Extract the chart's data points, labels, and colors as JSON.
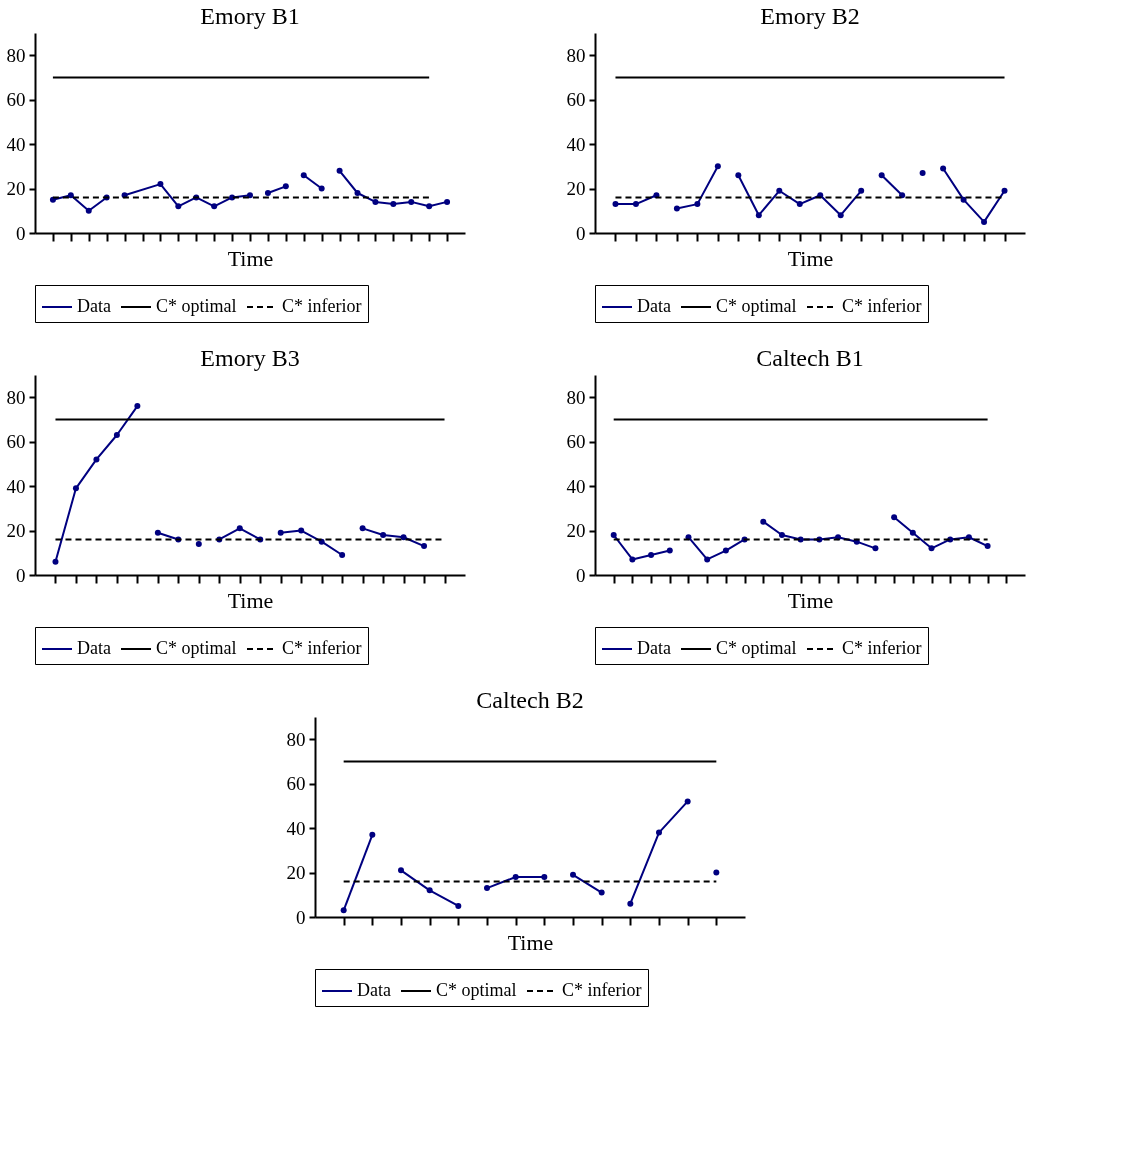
{
  "chart_data": [
    {
      "type": "line",
      "title": "Emory B1",
      "xlabel": "Time",
      "categories": [
        null,
        null,
        null,
        null,
        null,
        null,
        null,
        null,
        null,
        null,
        null,
        null,
        null,
        null,
        null,
        null,
        null,
        null,
        null,
        null,
        null,
        null,
        null
      ],
      "ylim": [
        0,
        90
      ],
      "yticks": [
        0,
        20,
        40,
        60,
        80
      ],
      "tick_labels": "y",
      "legend": "bottom",
      "marker": "circle",
      "series": [
        {
          "name": "Data",
          "color": "#000080",
          "values": [
            15,
            17,
            10,
            16,
            null,
            null,
            null,
            null,
            null,
            null,
            null,
            null,
            null,
            null,
            null,
            null,
            null,
            null,
            null,
            null,
            null,
            null,
            null
          ]
        },
        {
          "color": "#000080",
          "values": [
            null,
            null,
            null,
            null,
            17,
            null,
            22,
            12,
            16,
            12,
            16,
            17,
            null,
            null,
            null,
            null,
            null,
            null,
            null,
            null,
            null,
            null,
            null
          ]
        },
        {
          "color": "#000080",
          "values": [
            null,
            null,
            null,
            null,
            null,
            null,
            null,
            null,
            null,
            null,
            null,
            null,
            18,
            21,
            null,
            null,
            null,
            null,
            null,
            null,
            null,
            null,
            null
          ]
        },
        {
          "color": "#000080",
          "values": [
            null,
            null,
            null,
            null,
            null,
            null,
            null,
            null,
            null,
            null,
            null,
            null,
            null,
            null,
            26,
            20,
            null,
            null,
            null,
            null,
            null,
            null,
            null
          ]
        },
        {
          "color": "#000080",
          "values": [
            null,
            null,
            null,
            null,
            null,
            null,
            null,
            null,
            null,
            null,
            null,
            null,
            null,
            null,
            null,
            null,
            28,
            18,
            14,
            13,
            14,
            12,
            14
          ]
        },
        {
          "name": "C* optimal",
          "color": "#000000",
          "marker": "none",
          "line_style": "solid",
          "values": [
            70,
            70,
            70,
            70,
            70,
            70,
            70,
            70,
            70,
            70,
            70,
            70,
            70,
            70,
            70,
            70,
            70,
            70,
            70,
            70,
            70,
            70,
            null
          ]
        },
        {
          "name": "C* inferior",
          "color": "#000000",
          "marker": "none",
          "line_style": "dashed",
          "values": [
            16,
            16,
            16,
            16,
            16,
            16,
            16,
            16,
            16,
            16,
            16,
            16,
            16,
            16,
            16,
            16,
            16,
            16,
            16,
            16,
            16,
            16,
            null
          ]
        }
      ]
    },
    {
      "type": "line",
      "title": "Emory B2",
      "xlabel": "Time",
      "categories": [
        null,
        null,
        null,
        null,
        null,
        null,
        null,
        null,
        null,
        null,
        null,
        null,
        null,
        null,
        null,
        null,
        null,
        null,
        null,
        null
      ],
      "ylim": [
        0,
        90
      ],
      "yticks": [
        0,
        20,
        40,
        60,
        80
      ],
      "tick_labels": "y",
      "legend": "bottom",
      "marker": "circle",
      "series": [
        {
          "name": "Data",
          "color": "#000080",
          "values": [
            13,
            13,
            17,
            null,
            null,
            null,
            null,
            null,
            null,
            null,
            null,
            null,
            null,
            null,
            null,
            null,
            null,
            null,
            null,
            null
          ]
        },
        {
          "color": "#000080",
          "values": [
            null,
            null,
            null,
            11,
            13,
            30,
            null,
            null,
            null,
            null,
            null,
            null,
            null,
            null,
            null,
            null,
            null,
            null,
            null,
            null
          ]
        },
        {
          "color": "#000080",
          "values": [
            null,
            null,
            null,
            null,
            null,
            null,
            26,
            8,
            19,
            13,
            17,
            8,
            19,
            null,
            null,
            null,
            null,
            null,
            null,
            null
          ]
        },
        {
          "color": "#000080",
          "values": [
            null,
            null,
            null,
            null,
            null,
            null,
            null,
            null,
            null,
            null,
            null,
            null,
            null,
            26,
            17,
            null,
            null,
            null,
            null,
            null
          ]
        },
        {
          "color": "#000080",
          "values": [
            null,
            null,
            null,
            null,
            null,
            null,
            null,
            null,
            null,
            null,
            null,
            null,
            null,
            null,
            null,
            27,
            null,
            null,
            null,
            null
          ]
        },
        {
          "color": "#000080",
          "values": [
            null,
            null,
            null,
            null,
            null,
            null,
            null,
            null,
            null,
            null,
            null,
            null,
            null,
            null,
            null,
            null,
            29,
            15,
            5,
            19
          ]
        },
        {
          "name": "C* optimal",
          "color": "#000000",
          "marker": "none",
          "line_style": "solid",
          "values": [
            70,
            70,
            70,
            70,
            70,
            70,
            70,
            70,
            70,
            70,
            70,
            70,
            70,
            70,
            70,
            70,
            70,
            70,
            70,
            70
          ]
        },
        {
          "name": "C* inferior",
          "color": "#000000",
          "marker": "none",
          "line_style": "dashed",
          "values": [
            16,
            16,
            16,
            16,
            16,
            16,
            16,
            16,
            16,
            16,
            16,
            16,
            16,
            16,
            16,
            16,
            16,
            16,
            16,
            16
          ]
        }
      ]
    },
    {
      "type": "line",
      "title": "Emory B3",
      "xlabel": "Time",
      "categories": [
        null,
        null,
        null,
        null,
        null,
        null,
        null,
        null,
        null,
        null,
        null,
        null,
        null,
        null,
        null,
        null,
        null,
        null,
        null,
        null
      ],
      "ylim": [
        0,
        90
      ],
      "yticks": [
        0,
        20,
        40,
        60,
        80
      ],
      "tick_labels": "y",
      "legend": "bottom",
      "marker": "circle",
      "series": [
        {
          "name": "Data",
          "color": "#000080",
          "values": [
            6,
            39,
            52,
            63,
            76,
            null,
            null,
            null,
            null,
            null,
            null,
            null,
            null,
            null,
            null,
            null,
            null,
            null,
            null,
            null
          ]
        },
        {
          "color": "#000080",
          "values": [
            null,
            null,
            null,
            null,
            null,
            19,
            16,
            null,
            null,
            null,
            null,
            null,
            null,
            null,
            null,
            null,
            null,
            null,
            null,
            null
          ]
        },
        {
          "color": "#000080",
          "values": [
            null,
            null,
            null,
            null,
            null,
            null,
            null,
            14,
            null,
            null,
            null,
            null,
            null,
            null,
            null,
            null,
            null,
            null,
            null,
            null
          ]
        },
        {
          "color": "#000080",
          "values": [
            null,
            null,
            null,
            null,
            null,
            null,
            null,
            null,
            16,
            21,
            16,
            null,
            null,
            null,
            null,
            null,
            null,
            null,
            null,
            null
          ]
        },
        {
          "color": "#000080",
          "values": [
            null,
            null,
            null,
            null,
            null,
            null,
            null,
            null,
            null,
            null,
            null,
            19,
            20,
            15,
            9,
            null,
            null,
            null,
            null,
            null
          ]
        },
        {
          "color": "#000080",
          "values": [
            null,
            null,
            null,
            null,
            null,
            null,
            null,
            null,
            null,
            null,
            null,
            null,
            null,
            null,
            null,
            21,
            18,
            17,
            13,
            null
          ]
        },
        {
          "name": "C* optimal",
          "color": "#000000",
          "marker": "none",
          "line_style": "solid",
          "values": [
            70,
            70,
            70,
            70,
            70,
            70,
            70,
            70,
            70,
            70,
            70,
            70,
            70,
            70,
            70,
            70,
            70,
            70,
            70,
            70
          ]
        },
        {
          "name": "C* inferior",
          "color": "#000000",
          "marker": "none",
          "line_style": "dashed",
          "values": [
            16,
            16,
            16,
            16,
            16,
            16,
            16,
            16,
            16,
            16,
            16,
            16,
            16,
            16,
            16,
            16,
            16,
            16,
            16,
            16
          ]
        }
      ]
    },
    {
      "type": "line",
      "title": "Caltech B1",
      "xlabel": "Time",
      "categories": [
        null,
        null,
        null,
        null,
        null,
        null,
        null,
        null,
        null,
        null,
        null,
        null,
        null,
        null,
        null,
        null,
        null,
        null,
        null,
        null,
        null,
        null
      ],
      "ylim": [
        0,
        90
      ],
      "yticks": [
        0,
        20,
        40,
        60,
        80
      ],
      "tick_labels": "y",
      "legend": "bottom",
      "marker": "circle",
      "series": [
        {
          "name": "Data",
          "color": "#000080",
          "values": [
            18,
            7,
            9,
            11,
            null,
            null,
            null,
            null,
            null,
            null,
            null,
            null,
            null,
            null,
            null,
            null,
            null,
            null,
            null,
            null,
            null,
            null
          ]
        },
        {
          "color": "#000080",
          "values": [
            null,
            null,
            null,
            null,
            17,
            7,
            11,
            16,
            null,
            null,
            null,
            null,
            null,
            null,
            null,
            null,
            null,
            null,
            null,
            null,
            null,
            null
          ]
        },
        {
          "color": "#000080",
          "values": [
            null,
            null,
            null,
            null,
            null,
            null,
            null,
            null,
            24,
            18,
            16,
            16,
            17,
            15,
            12,
            null,
            null,
            null,
            null,
            null,
            null,
            null
          ]
        },
        {
          "color": "#000080",
          "values": [
            null,
            null,
            null,
            null,
            null,
            null,
            null,
            null,
            null,
            null,
            null,
            null,
            null,
            null,
            null,
            26,
            19,
            12,
            16,
            17,
            13,
            null
          ]
        },
        {
          "name": "C* optimal",
          "color": "#000000",
          "marker": "none",
          "line_style": "solid",
          "values": [
            70,
            70,
            70,
            70,
            70,
            70,
            70,
            70,
            70,
            70,
            70,
            70,
            70,
            70,
            70,
            70,
            70,
            70,
            70,
            70,
            70,
            null
          ]
        },
        {
          "name": "C* inferior",
          "color": "#000000",
          "marker": "none",
          "line_style": "dashed",
          "values": [
            16,
            16,
            16,
            16,
            16,
            16,
            16,
            16,
            16,
            16,
            16,
            16,
            16,
            16,
            16,
            16,
            16,
            16,
            16,
            16,
            16,
            null
          ]
        }
      ]
    },
    {
      "type": "line",
      "title": "Caltech B2",
      "xlabel": "Time",
      "categories": [
        null,
        null,
        null,
        null,
        null,
        null,
        null,
        null,
        null,
        null,
        null,
        null,
        null,
        null
      ],
      "ylim": [
        0,
        90
      ],
      "yticks": [
        0,
        20,
        40,
        60,
        80
      ],
      "tick_labels": "y",
      "legend": "bottom",
      "marker": "circle",
      "series": [
        {
          "name": "Data",
          "color": "#000080",
          "values": [
            3,
            37,
            null,
            null,
            null,
            null,
            null,
            null,
            null,
            null,
            null,
            null,
            null,
            null
          ]
        },
        {
          "color": "#000080",
          "values": [
            null,
            null,
            21,
            12,
            5,
            null,
            null,
            null,
            null,
            null,
            null,
            null,
            null,
            null
          ]
        },
        {
          "color": "#000080",
          "values": [
            null,
            null,
            null,
            null,
            null,
            13,
            18,
            18,
            null,
            null,
            null,
            null,
            null,
            null
          ]
        },
        {
          "color": "#000080",
          "values": [
            null,
            null,
            null,
            null,
            null,
            null,
            null,
            null,
            19,
            11,
            null,
            null,
            null,
            null
          ]
        },
        {
          "color": "#000080",
          "values": [
            null,
            null,
            null,
            null,
            null,
            null,
            null,
            null,
            null,
            null,
            6,
            38,
            52,
            null
          ]
        },
        {
          "color": "#000080",
          "values": [
            null,
            null,
            null,
            null,
            null,
            null,
            null,
            null,
            null,
            null,
            null,
            null,
            null,
            20
          ]
        },
        {
          "name": "C* optimal",
          "color": "#000000",
          "marker": "none",
          "line_style": "solid",
          "values": [
            70,
            70,
            70,
            70,
            70,
            70,
            70,
            70,
            70,
            70,
            70,
            70,
            70,
            70
          ]
        },
        {
          "name": "C* inferior",
          "color": "#000000",
          "marker": "none",
          "line_style": "dashed",
          "values": [
            16,
            16,
            16,
            16,
            16,
            16,
            16,
            16,
            16,
            16,
            16,
            16,
            16,
            16
          ]
        }
      ]
    }
  ]
}
